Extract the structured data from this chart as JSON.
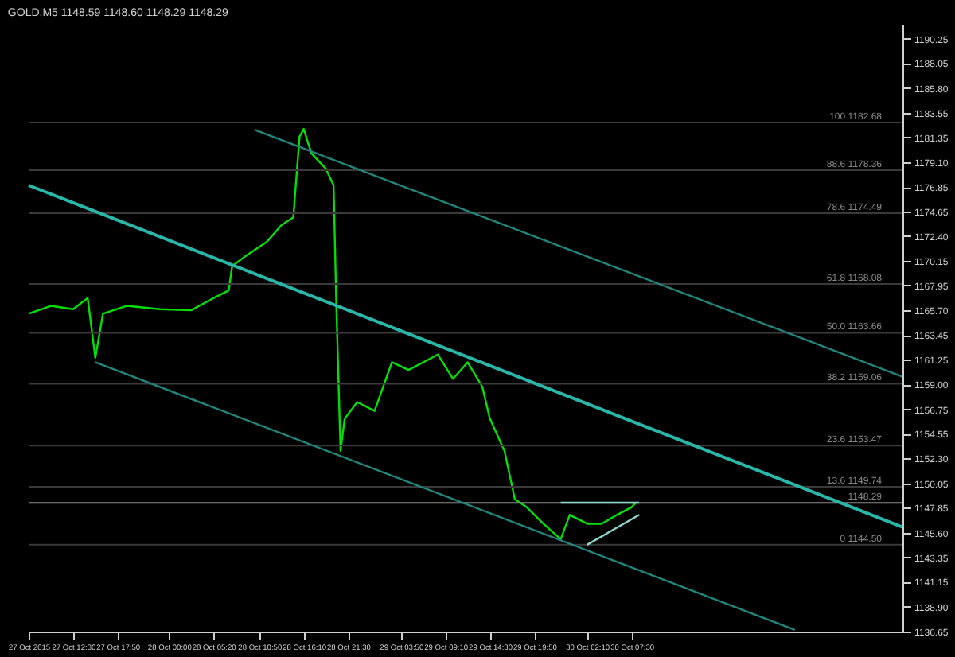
{
  "chart_data": {
    "type": "line",
    "title": "GOLD,M5  1148.59 1148.60 1148.29 1148.29",
    "series": [
      {
        "color": "#00e000",
        "x": [
          "2015-10-27T07:10",
          "2015-10-27T09:50",
          "2015-10-27T12:30",
          "2015-10-27T14:15",
          "2015-10-27T15:10",
          "2015-10-27T16:05",
          "2015-10-27T18:55",
          "2015-10-27T22:55",
          "2015-10-28T02:40",
          "2015-10-28T05:20",
          "2015-10-28T07:10",
          "2015-10-28T07:35",
          "2015-10-28T09:00",
          "2015-10-28T11:45",
          "2015-10-28T13:30",
          "2015-10-28T14:55",
          "2015-10-28T15:40",
          "2015-10-28T16:10",
          "2015-10-28T17:05",
          "2015-10-28T18:50",
          "2015-10-28T19:45",
          "2015-10-28T20:05",
          "2015-10-28T20:35",
          "2015-10-28T21:05",
          "2015-10-28T22:35",
          "2015-10-29T00:40",
          "2015-10-29T02:45",
          "2015-10-29T04:45",
          "2015-10-29T06:30",
          "2015-10-29T08:15",
          "2015-10-29T10:05",
          "2015-10-29T11:50",
          "2015-10-29T13:35",
          "2015-10-29T14:30",
          "2015-10-29T16:15",
          "2015-10-29T17:30",
          "2015-10-29T18:55",
          "2015-10-29T20:55",
          "2015-10-29T23:00",
          "2015-10-30T00:05",
          "2015-10-30T02:10",
          "2015-10-30T03:55",
          "2015-10-30T05:45",
          "2015-10-30T07:30",
          "2015-10-30T08:00"
        ],
        "values": [
          1165.4,
          1166.1,
          1165.8,
          1166.8,
          1161.4,
          1165.4,
          1166.1,
          1165.8,
          1165.7,
          1166.8,
          1167.5,
          1169.7,
          1170.5,
          1171.9,
          1173.4,
          1174.1,
          1181.4,
          1182.1,
          1179.9,
          1178.5,
          1177.0,
          1166.1,
          1153.0,
          1155.9,
          1157.4,
          1156.6,
          1161.0,
          1160.3,
          1161.0,
          1161.7,
          1159.5,
          1161.0,
          1158.8,
          1155.9,
          1153.0,
          1148.6,
          1147.9,
          1146.4,
          1145.0,
          1147.2,
          1146.4,
          1146.4,
          1147.2,
          1147.9,
          1148.3
        ]
      },
      {
        "color": "#2ab7a9",
        "x": [
          "2015-10-27T07:10",
          "2015-10-31T16:00"
        ],
        "values": [
          1177.0,
          1146.1
        ]
      },
      {
        "color": "#23867d",
        "x": [
          "2015-10-28T10:20",
          "2015-10-31T16:00"
        ],
        "values": [
          1182.0,
          1159.7
        ]
      },
      {
        "color": "#23867d",
        "x": [
          "2015-10-27T15:10",
          "2015-10-31T03:05"
        ],
        "values": [
          1161.0,
          1136.8
        ]
      },
      {
        "color": "#8fd6cf",
        "x": [
          "2015-10-29T23:00",
          "2015-10-30T08:25"
        ],
        "values": [
          1148.3,
          1148.3
        ]
      },
      {
        "color": "#8fd6cf",
        "x": [
          "2015-10-30T02:10",
          "2015-10-30T08:25"
        ],
        "values": [
          1144.5,
          1147.2
        ]
      }
    ],
    "ref_lines": [
      {
        "axis": "y",
        "value": 1182.68,
        "label": "100 1182.68",
        "color": "#3a3a3a"
      },
      {
        "axis": "y",
        "value": 1178.36,
        "label": "88.6 1178.36",
        "color": "#3a3a3a"
      },
      {
        "axis": "y",
        "value": 1174.49,
        "label": "78.6 1174.49",
        "color": "#3a3a3a"
      },
      {
        "axis": "y",
        "value": 1168.08,
        "label": "61.8 1168.08",
        "color": "#3a3a3a"
      },
      {
        "axis": "y",
        "value": 1163.66,
        "label": "50.0 1163.66",
        "color": "#3a3a3a"
      },
      {
        "axis": "y",
        "value": 1159.06,
        "label": "38.2 1159.06",
        "color": "#3a3a3a"
      },
      {
        "axis": "y",
        "value": 1153.47,
        "label": "23.6 1153.47",
        "color": "#3a3a3a"
      },
      {
        "axis": "y",
        "value": 1149.74,
        "label": "13.6 1149.74",
        "color": "#3a3a3a"
      },
      {
        "axis": "y",
        "value": 1144.5,
        "label": "0 1144.50",
        "color": "#3a3a3a"
      },
      {
        "axis": "y",
        "value": 1148.29,
        "label": "1148.29",
        "color": "#8a8a8a"
      }
    ],
    "xlim": [
      "2015-10-27T07:10",
      "2015-10-31T16:00"
    ],
    "xticks": [
      {
        "value": "2015-10-27T07:10",
        "label": "27 Oct 2015"
      },
      {
        "value": "2015-10-27T12:30",
        "label": "27 Oct 12:30"
      },
      {
        "value": "2015-10-27T17:50",
        "label": "27 Oct 17:50"
      },
      {
        "value": "2015-10-28T00:00",
        "label": "28 Oct 00:00"
      },
      {
        "value": "2015-10-28T05:20",
        "label": "28 Oct 05:20"
      },
      {
        "value": "2015-10-28T10:50",
        "label": "28 Oct 10:50"
      },
      {
        "value": "2015-10-28T16:10",
        "label": "28 Oct 16:10"
      },
      {
        "value": "2015-10-28T21:30",
        "label": "28 Oct 21:30"
      },
      {
        "value": "2015-10-29T03:50",
        "label": "29 Oct 03:50"
      },
      {
        "value": "2015-10-29T09:10",
        "label": "29 Oct 09:10"
      },
      {
        "value": "2015-10-29T14:30",
        "label": "29 Oct 14:30"
      },
      {
        "value": "2015-10-29T19:50",
        "label": "29 Oct 19:50"
      },
      {
        "value": "2015-10-30T02:10",
        "label": "30 Oct 02:10"
      },
      {
        "value": "2015-10-30T07:30",
        "label": "30 Oct 07:30"
      }
    ],
    "ylim": [
      1136.65,
      1191.6
    ],
    "yticks": [
      1136.65,
      {
        "value": 1138.9,
        "label": "1138.90"
      },
      1141.15,
      1143.35,
      {
        "value": 1145.6,
        "label": "1145.60"
      },
      1147.85,
      1150.05,
      {
        "value": 1152.3,
        "label": "1152.30"
      },
      1154.55,
      1156.75,
      {
        "value": 1159.0,
        "label": "1159.00"
      },
      1161.25,
      1163.45,
      {
        "value": 1165.7,
        "label": "1165.70"
      },
      1167.95,
      1170.15,
      {
        "value": 1172.4,
        "label": "1172.40"
      },
      1174.65,
      1176.85,
      {
        "value": 1179.1,
        "label": "1179.10"
      },
      1181.35,
      1183.55,
      {
        "value": 1185.8,
        "label": "1185.80"
      },
      1188.05,
      1190.25
    ],
    "grid": false
  }
}
